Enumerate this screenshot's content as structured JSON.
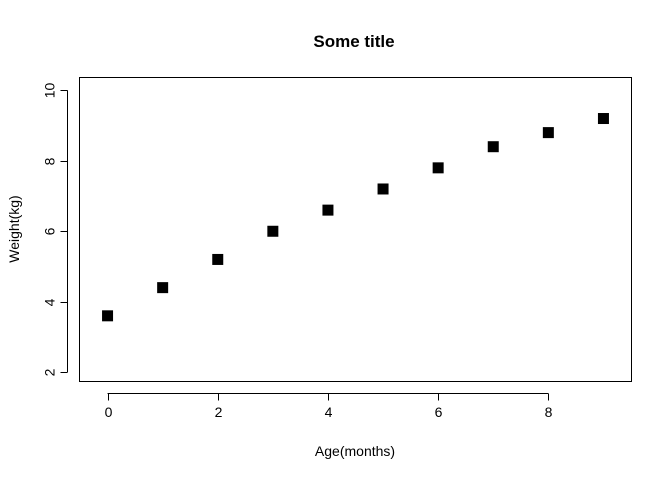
{
  "chart_data": {
    "type": "scatter",
    "title": "Some title",
    "xlabel": "Age(months)",
    "ylabel": "Weight(kg)",
    "xlim": [
      -0.5,
      9.5
    ],
    "ylim": [
      1.75,
      10.35
    ],
    "xticks": [
      0,
      2,
      4,
      6,
      8
    ],
    "yticks": [
      2,
      4,
      6,
      8,
      10
    ],
    "marker": "filled-square",
    "grid": false,
    "series": [
      {
        "x": [
          0,
          1,
          2,
          3,
          4,
          5,
          6,
          7,
          8,
          9
        ],
        "y": [
          3.6,
          4.4,
          5.2,
          6.0,
          6.6,
          7.2,
          7.8,
          8.4,
          8.8,
          9.2
        ]
      }
    ]
  },
  "colors": {
    "point": "#000000",
    "axis": "#000000",
    "background": "#ffffff"
  }
}
